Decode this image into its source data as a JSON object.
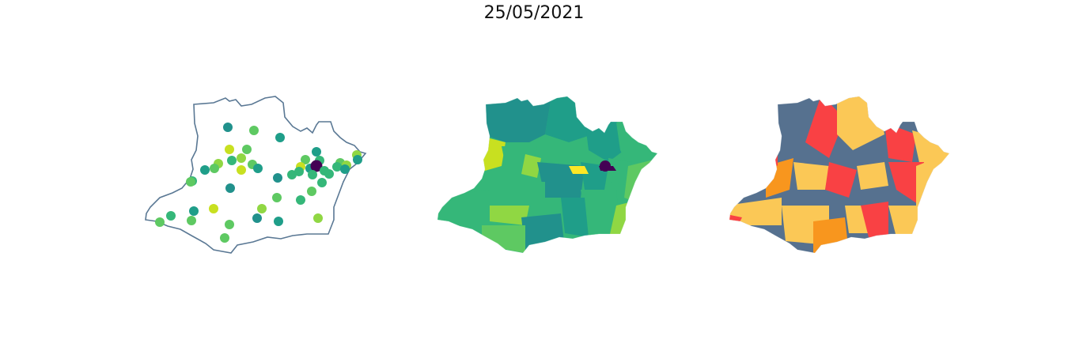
{
  "figure": {
    "title": "25/05/2021"
  },
  "colors": {
    "outline": "#5a7894",
    "viridis_dark": "#440154",
    "viridis_teal": "#21918c",
    "viridis_teal2": "#1f9e89",
    "viridis_green": "#35b779",
    "viridis_lightgreen": "#5ec962",
    "viridis_lime": "#90d743",
    "viridis_yellowgreen": "#c8e020",
    "viridis_yellow": "#fde725",
    "category_slate": "#56718f",
    "category_yellow": "#fbc856",
    "category_red": "#f94144",
    "category_orange": "#f8961e"
  },
  "panels": [
    {
      "name": "point-map",
      "style": "points"
    },
    {
      "name": "choropleth-viridis",
      "style": "viridis"
    },
    {
      "name": "choropleth-categories",
      "style": "categories"
    }
  ]
}
